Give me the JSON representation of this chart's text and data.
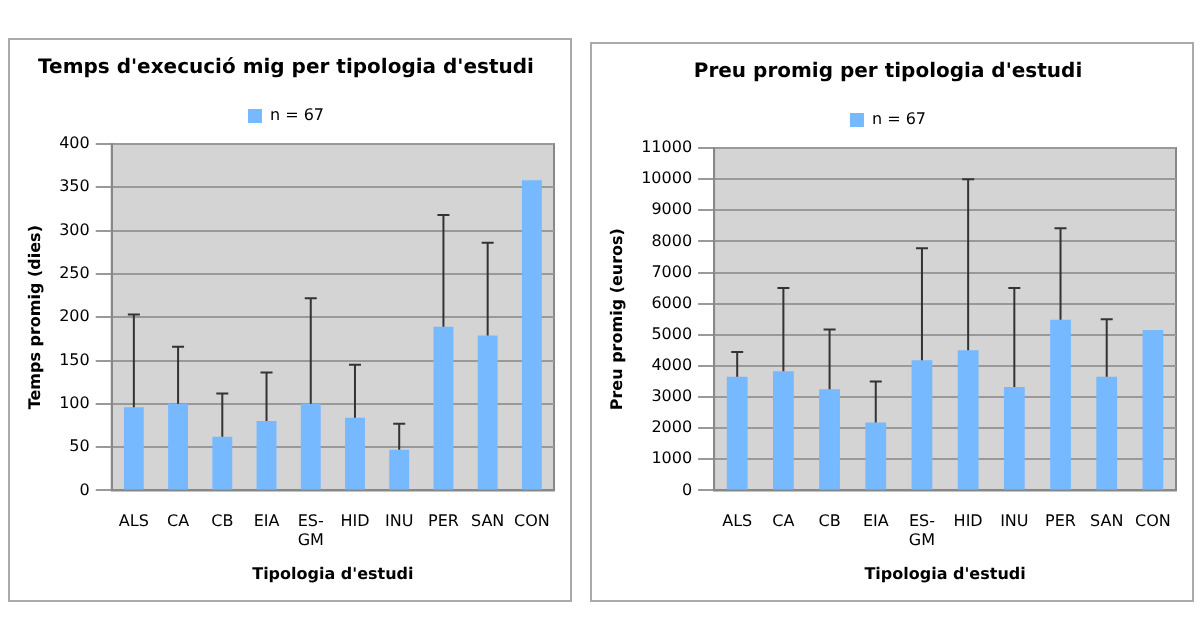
{
  "chart_data": [
    {
      "type": "bar",
      "title": "Temps d'execució mig per tipologia d'estudi",
      "xlabel": "Tipologia d'estudi",
      "ylabel": "Temps promig (dies)",
      "categories": [
        "ALS",
        "CA",
        "CB",
        "EIA",
        "ES-GM",
        "HID",
        "INU",
        "PER",
        "SAN",
        "CON"
      ],
      "series": [
        {
          "name": "n = 67",
          "color": "#77b9ff",
          "values": [
            96,
            100,
            62,
            80,
            100,
            84,
            47,
            189,
            179,
            358
          ],
          "errors": [
            [
              96,
              203
            ],
            [
              100,
              166
            ],
            [
              62,
              112
            ],
            [
              80,
              136
            ],
            [
              100,
              222
            ],
            [
              84,
              145
            ],
            [
              47,
              77
            ],
            [
              189,
              318
            ],
            [
              179,
              286
            ],
            null
          ]
        }
      ],
      "ylim": [
        0,
        400
      ],
      "yticks": [
        0,
        50,
        100,
        150,
        200,
        250,
        300,
        350,
        400
      ],
      "grid": "y",
      "legend": "top"
    },
    {
      "type": "bar",
      "title": "Preu promig per tipologia d'estudi",
      "xlabel": "Tipologia d'estudi",
      "ylabel": "Preu promig (euros)",
      "categories": [
        "ALS",
        "CA",
        "CB",
        "EIA",
        "ES-GM",
        "HID",
        "INU",
        "PER",
        "SAN",
        "CON"
      ],
      "series": [
        {
          "name": "n = 67",
          "color": "#77b9ff",
          "values": [
            3650,
            3830,
            3250,
            2180,
            4180,
            4500,
            3320,
            5480,
            3650,
            5150
          ],
          "errors": [
            [
              3650,
              4450
            ],
            [
              3830,
              6500
            ],
            [
              3250,
              5170
            ],
            [
              2180,
              3500
            ],
            [
              4180,
              7780
            ],
            [
              4500,
              10000
            ],
            [
              3320,
              6500
            ],
            [
              5480,
              8420
            ],
            [
              3650,
              5500
            ],
            null
          ]
        }
      ],
      "ylim": [
        0,
        11000
      ],
      "yticks": [
        0,
        1000,
        2000,
        3000,
        4000,
        5000,
        6000,
        7000,
        8000,
        9000,
        10000,
        11000
      ],
      "grid": "y",
      "legend": "top"
    }
  ]
}
